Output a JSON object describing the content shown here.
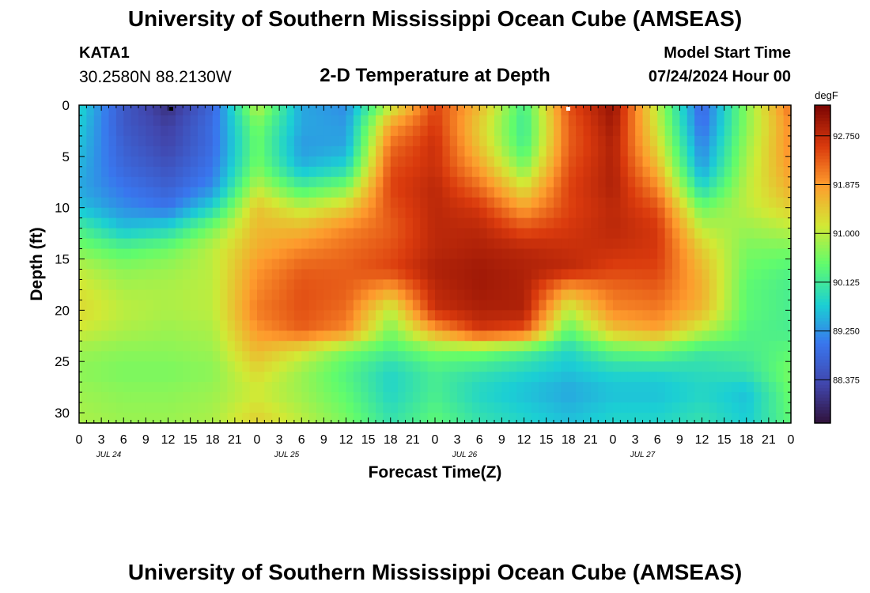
{
  "header": {
    "title": "University of Southern Mississippi Ocean Cube (AMSEAS)",
    "station_id": "KATA1",
    "coordinates": "30.2580N  88.2130W",
    "subtitle": "2-D Temperature at Depth",
    "model_start_label": "Model Start Time",
    "model_start_value": "07/24/2024 Hour 00"
  },
  "footer": {
    "title": "University of Southern Mississippi Ocean Cube (AMSEAS)"
  },
  "chart_data": {
    "type": "heatmap",
    "title": "2-D Temperature at Depth",
    "xlabel": "Forecast Time(Z)",
    "ylabel": "Depth (ft)",
    "x_tick_labels": [
      "0",
      "3",
      "6",
      "9",
      "12",
      "15",
      "18",
      "21",
      "0",
      "3",
      "6",
      "9",
      "12",
      "15",
      "18",
      "21",
      "0",
      "3",
      "6",
      "9",
      "12",
      "15",
      "18",
      "21",
      "0",
      "3",
      "6",
      "9",
      "12",
      "15",
      "18",
      "21",
      "0"
    ],
    "date_labels": [
      {
        "label": "JUL 24",
        "hour": 4
      },
      {
        "label": "JUL 25",
        "hour": 28
      },
      {
        "label": "JUL 26",
        "hour": 52
      },
      {
        "label": "JUL 27",
        "hour": 76
      }
    ],
    "x_range_hours": [
      0,
      96
    ],
    "y_range_ft": [
      0,
      31
    ],
    "y_tick_labels": [
      "0",
      "5",
      "10",
      "15",
      "20",
      "25",
      "30"
    ],
    "y_tick_values": [
      0,
      5,
      10,
      15,
      20,
      25,
      30
    ],
    "colorbar": {
      "unit": "degF",
      "min": 87.6,
      "max": 93.3,
      "tick_labels": [
        "92.750",
        "91.875",
        "91.000",
        "90.125",
        "89.250",
        "88.375"
      ],
      "tick_values": [
        92.75,
        91.875,
        91.0,
        90.125,
        89.25,
        88.375
      ]
    },
    "grid_depths_ft": [
      0,
      2,
      4,
      6,
      8,
      10,
      12,
      14,
      16,
      18,
      20,
      22,
      24,
      26,
      28,
      31
    ],
    "grid_hours": [
      0,
      6,
      12,
      18,
      24,
      30,
      36,
      42,
      48,
      54,
      60,
      66,
      72,
      78,
      84,
      90,
      96
    ],
    "values_degF": [
      [
        89.8,
        88.6,
        88.0,
        88.8,
        91.0,
        89.4,
        89.2,
        91.0,
        92.5,
        91.6,
        90.2,
        92.4,
        93.1,
        91.0,
        88.8,
        90.7,
        92.2
      ],
      [
        89.7,
        88.6,
        88.2,
        88.9,
        90.6,
        89.4,
        89.3,
        91.8,
        92.6,
        91.4,
        90.1,
        92.3,
        93.0,
        91.1,
        88.9,
        90.7,
        92.0
      ],
      [
        89.6,
        88.7,
        88.3,
        88.9,
        90.5,
        89.3,
        89.4,
        92.2,
        92.7,
        91.5,
        90.2,
        92.3,
        92.9,
        91.3,
        89.1,
        90.8,
        92.0
      ],
      [
        89.5,
        88.8,
        88.5,
        89.0,
        90.6,
        89.5,
        89.8,
        92.4,
        92.7,
        91.8,
        90.6,
        92.4,
        92.9,
        91.6,
        89.3,
        90.9,
        91.9
      ],
      [
        89.4,
        89.0,
        88.7,
        89.2,
        91.0,
        90.2,
        90.6,
        92.5,
        92.8,
        92.2,
        91.2,
        92.5,
        92.9,
        92.0,
        89.8,
        91.0,
        91.7
      ],
      [
        89.6,
        89.2,
        89.0,
        89.8,
        91.5,
        91.0,
        91.4,
        92.4,
        92.8,
        92.6,
        91.8,
        92.5,
        92.8,
        92.4,
        90.5,
        91.0,
        91.4
      ],
      [
        90.2,
        89.6,
        89.8,
        90.6,
        91.6,
        91.6,
        92.0,
        92.3,
        92.8,
        92.8,
        92.4,
        92.6,
        92.8,
        92.6,
        91.0,
        90.8,
        91.0
      ],
      [
        90.6,
        90.3,
        90.5,
        91.0,
        91.7,
        92.0,
        92.2,
        92.4,
        92.8,
        92.9,
        92.8,
        92.7,
        92.7,
        92.6,
        91.4,
        90.6,
        90.6
      ],
      [
        91.0,
        90.7,
        90.8,
        91.0,
        91.9,
        92.3,
        92.3,
        92.5,
        92.9,
        93.0,
        92.9,
        92.8,
        92.5,
        92.5,
        91.6,
        90.5,
        90.3
      ],
      [
        91.2,
        90.9,
        90.9,
        91.0,
        92.0,
        92.4,
        92.3,
        91.8,
        92.8,
        93.0,
        92.9,
        91.8,
        92.2,
        92.3,
        91.7,
        90.4,
        90.2
      ],
      [
        91.3,
        91.0,
        90.9,
        91.0,
        92.1,
        92.4,
        92.2,
        91.0,
        92.7,
        92.9,
        92.9,
        91.0,
        92.0,
        92.1,
        91.6,
        90.4,
        90.2
      ],
      [
        91.1,
        90.9,
        90.8,
        90.9,
        91.9,
        92.3,
        92.0,
        90.6,
        91.8,
        92.6,
        92.4,
        90.4,
        91.5,
        91.8,
        91.0,
        90.3,
        90.2
      ],
      [
        90.8,
        90.7,
        90.7,
        90.8,
        91.6,
        91.2,
        90.6,
        90.2,
        90.6,
        90.6,
        90.3,
        89.8,
        90.4,
        90.5,
        90.1,
        90.2,
        90.4
      ],
      [
        90.7,
        90.6,
        90.6,
        90.7,
        91.3,
        90.8,
        90.3,
        89.8,
        90.2,
        90.0,
        89.8,
        89.6,
        89.8,
        89.8,
        89.9,
        90.0,
        90.6
      ],
      [
        90.8,
        90.7,
        90.7,
        90.8,
        91.1,
        90.8,
        90.4,
        89.8,
        90.2,
        89.8,
        89.6,
        89.4,
        89.6,
        89.6,
        89.8,
        89.6,
        90.5
      ],
      [
        90.9,
        90.8,
        90.8,
        90.9,
        91.4,
        91.0,
        90.6,
        90.0,
        90.4,
        90.0,
        89.8,
        89.6,
        89.8,
        89.8,
        90.0,
        89.7,
        90.4
      ]
    ]
  }
}
